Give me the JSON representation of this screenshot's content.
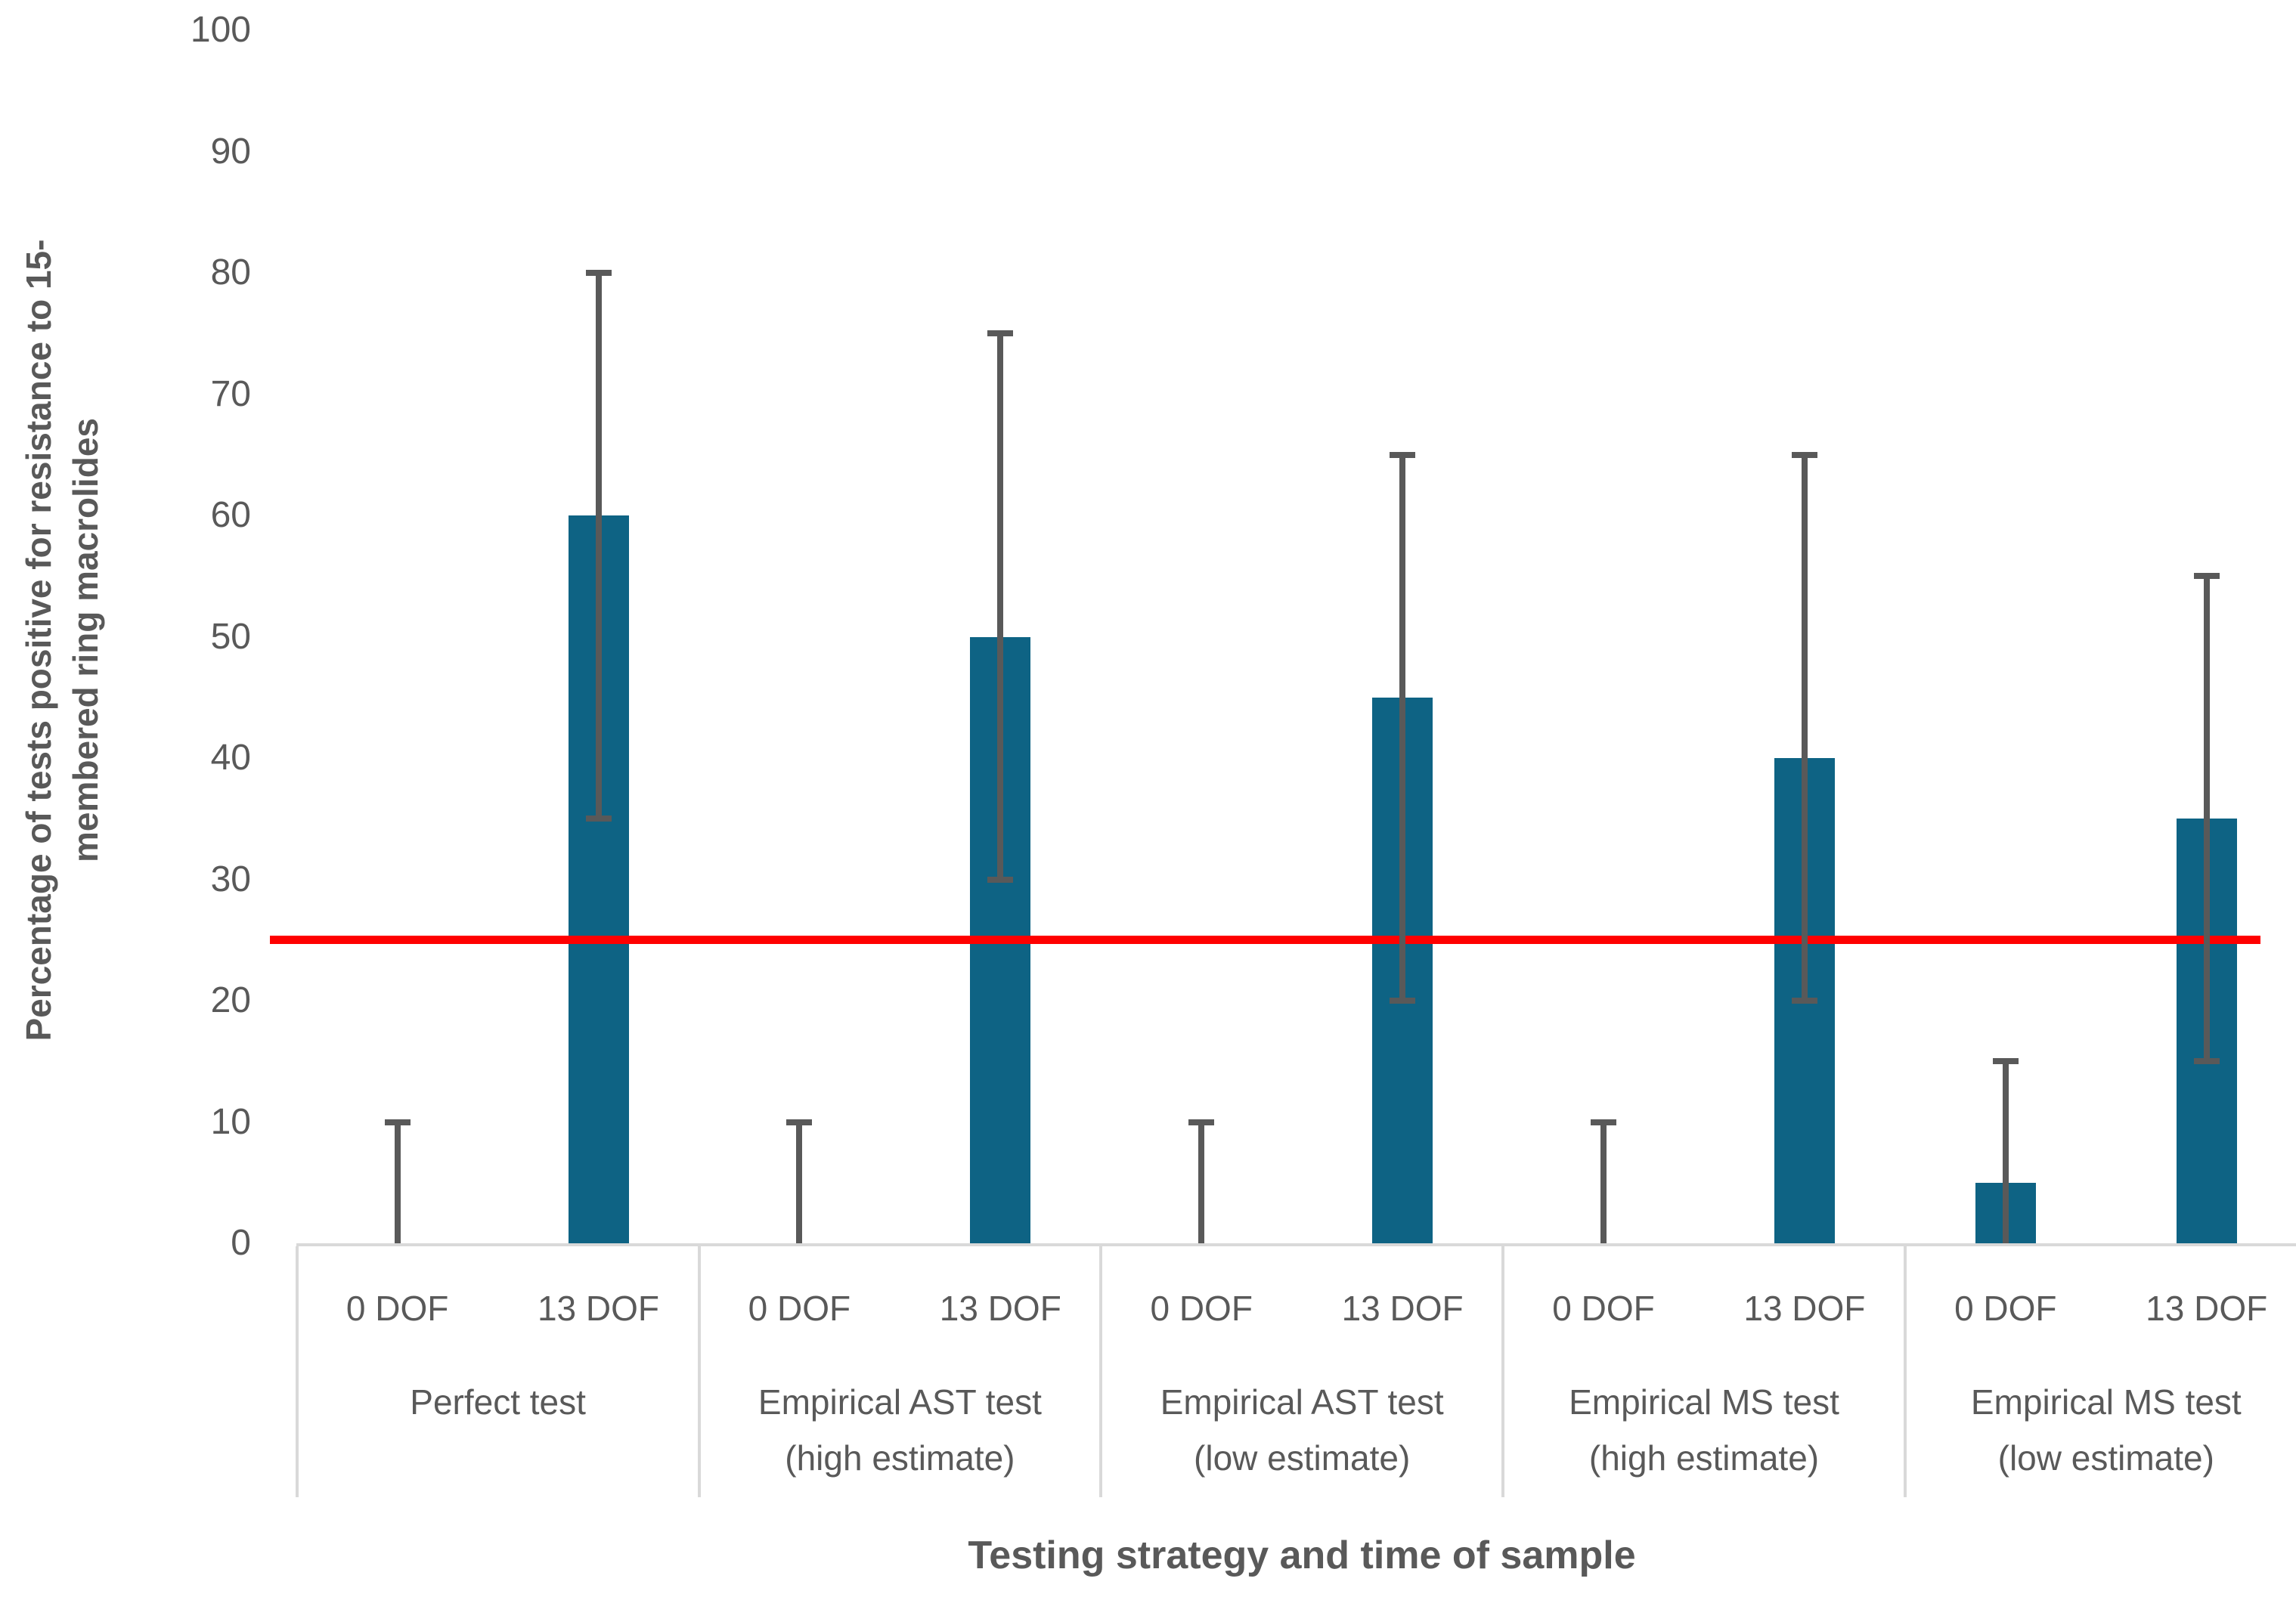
{
  "chart_data": {
    "type": "bar",
    "title": "",
    "xlabel": "Testing strategy and time of sample",
    "ylabel": "Percentage of tests positive for resistance to 15-membered ring macrolides",
    "ylabel_lines": [
      "Percentage of tests positive for resistance to 15-",
      "membered ring macrolides"
    ],
    "ylim": [
      0,
      100
    ],
    "yticks": [
      0,
      10,
      20,
      30,
      40,
      50,
      60,
      70,
      80,
      90,
      100
    ],
    "grid": false,
    "legend": false,
    "bar_color": "#0E6384",
    "error_bar_color": "#595959",
    "band_border_color": "#D9D9D9",
    "text_color": "#595959",
    "reference_line": {
      "value": 25,
      "color": "#FF0000"
    },
    "groups": [
      {
        "label_lines": [
          "Perfect test"
        ],
        "bars": [
          {
            "x_label": "0 DOF",
            "value": 0,
            "err_low": 0,
            "err_high": 10
          },
          {
            "x_label": "13 DOF",
            "value": 60,
            "err_low": 35,
            "err_high": 80
          }
        ]
      },
      {
        "label_lines": [
          "Empirical AST test",
          "(high estimate)"
        ],
        "bars": [
          {
            "x_label": "0 DOF",
            "value": 0,
            "err_low": 0,
            "err_high": 10
          },
          {
            "x_label": "13 DOF",
            "value": 50,
            "err_low": 30,
            "err_high": 75
          }
        ]
      },
      {
        "label_lines": [
          "Empirical AST test",
          "(low estimate)"
        ],
        "bars": [
          {
            "x_label": "0 DOF",
            "value": 0,
            "err_low": 0,
            "err_high": 10
          },
          {
            "x_label": "13 DOF",
            "value": 45,
            "err_low": 20,
            "err_high": 65
          }
        ]
      },
      {
        "label_lines": [
          "Empirical MS test",
          "(high estimate)"
        ],
        "bars": [
          {
            "x_label": "0 DOF",
            "value": 0,
            "err_low": 0,
            "err_high": 10
          },
          {
            "x_label": "13 DOF",
            "value": 40,
            "err_low": 20,
            "err_high": 65
          }
        ]
      },
      {
        "label_lines": [
          "Empirical MS test",
          "(low estimate)"
        ],
        "bars": [
          {
            "x_label": "0 DOF",
            "value": 5,
            "err_low": 0,
            "err_high": 15
          },
          {
            "x_label": "13 DOF",
            "value": 35,
            "err_low": 15,
            "err_high": 55
          }
        ]
      }
    ]
  }
}
